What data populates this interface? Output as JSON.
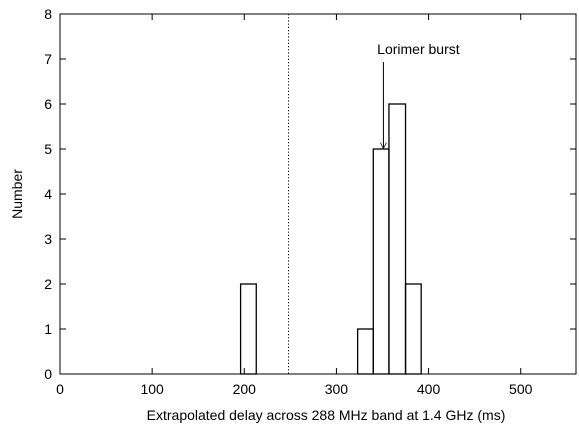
{
  "chart_data": {
    "type": "bar",
    "subtype": "histogram-outline",
    "title": "",
    "xlabel": "Extrapolated delay across 288 MHz band at 1.4 GHz (ms)",
    "ylabel": "Number",
    "xlim": [
      0,
      560
    ],
    "ylim": [
      0,
      8
    ],
    "x_ticks": [
      0,
      100,
      200,
      300,
      400,
      500
    ],
    "y_ticks": [
      0,
      1,
      2,
      3,
      4,
      5,
      6,
      7,
      8
    ],
    "grid": false,
    "legend": "none",
    "bins": [
      {
        "x0": 196,
        "x1": 213,
        "count": 2
      },
      {
        "x0": 323,
        "x1": 340,
        "count": 1
      },
      {
        "x0": 340,
        "x1": 357,
        "count": 5
      },
      {
        "x0": 357,
        "x1": 375,
        "count": 6
      },
      {
        "x0": 375,
        "x1": 392,
        "count": 2
      }
    ],
    "reference_line": {
      "x": 248,
      "style": "dotted"
    },
    "annotations": [
      {
        "text": "Lorimer burst",
        "arrow_to": {
          "x": 351,
          "y": 5
        }
      }
    ],
    "colors": {
      "line": "#000000",
      "background": "#ffffff"
    }
  }
}
